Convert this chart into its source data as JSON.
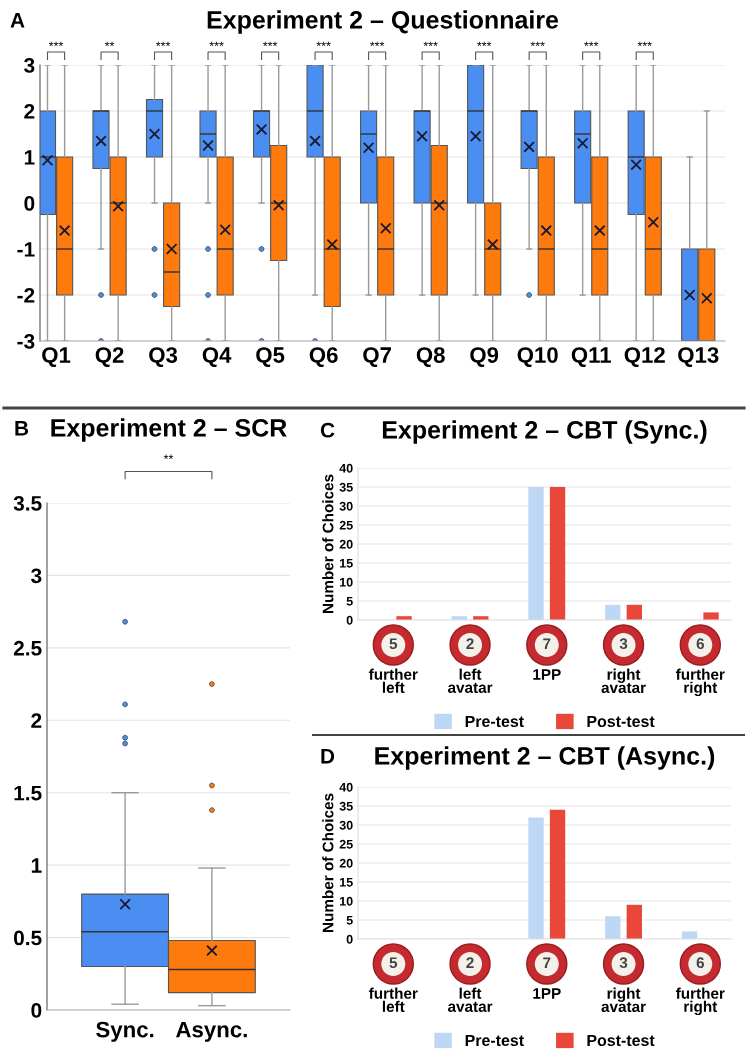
{
  "chart_data": [
    {
      "type": "box",
      "title": "Experiment 2 – Questionnaire",
      "annotations": [
        "A",
        "***",
        "**",
        "***",
        "***",
        "***",
        "***",
        "***",
        "***",
        "***",
        "***",
        "***",
        "***"
      ],
      "categories": [
        "Q1",
        "Q2",
        "Q3",
        "Q4",
        "Q5",
        "Q6",
        "Q7",
        "Q8",
        "Q9",
        "Q10",
        "Q11",
        "Q12",
        "Q13"
      ],
      "ylim": [
        -3,
        3
      ],
      "yticks": [
        -3,
        -2,
        -1,
        0,
        1,
        2,
        3
      ],
      "grid": "y",
      "series": [
        {
          "color": "#4a8ef2",
          "boxes": [
            {
              "low": -3,
              "q1": -0.25,
              "median": 1,
              "q3": 2,
              "high": 3,
              "mean": 0.93
            },
            {
              "low": -1,
              "q1": 0.75,
              "median": 2,
              "q3": 2,
              "high": 3,
              "mean": 1.35,
              "outliers": [
                -2,
                -3
              ]
            },
            {
              "low": 0,
              "q1": 1,
              "median": 2,
              "q3": 2.25,
              "high": 3,
              "mean": 1.5,
              "outliers": [
                -1,
                -2
              ]
            },
            {
              "low": 0,
              "q1": 1,
              "median": 1.5,
              "q3": 2,
              "high": 3,
              "mean": 1.25,
              "outliers": [
                -1,
                -2,
                -3
              ]
            },
            {
              "low": 0,
              "q1": 1,
              "median": 2,
              "q3": 2,
              "high": 3,
              "mean": 1.6,
              "outliers": [
                -1,
                -3
              ]
            },
            {
              "low": -2,
              "q1": 1,
              "median": 2,
              "q3": 3,
              "high": 3,
              "mean": 1.35,
              "outliers": [
                -3
              ]
            },
            {
              "low": -2,
              "q1": 0,
              "median": 1.5,
              "q3": 2,
              "high": 3,
              "mean": 1.2
            },
            {
              "low": -2,
              "q1": 0,
              "median": 2,
              "q3": 2,
              "high": 3,
              "mean": 1.45
            },
            {
              "low": -2,
              "q1": 0,
              "median": 2,
              "q3": 3,
              "high": 3,
              "mean": 1.45
            },
            {
              "low": -1,
              "q1": 0.75,
              "median": 2,
              "q3": 2,
              "high": 3,
              "mean": 1.22,
              "outliers": [
                -2
              ]
            },
            {
              "low": -2,
              "q1": 0,
              "median": 1.5,
              "q3": 2,
              "high": 3,
              "mean": 1.3
            },
            {
              "low": -3,
              "q1": -0.25,
              "median": 1,
              "q3": 2,
              "high": 3,
              "mean": 0.83
            },
            {
              "low": -3,
              "q1": -3,
              "median": -3,
              "q3": -1,
              "high": 1,
              "mean": -2
            }
          ]
        },
        {
          "color": "#ff7a0c",
          "boxes": [
            {
              "low": -3,
              "q1": -2,
              "median": -1,
              "q3": 1,
              "high": 3,
              "mean": -0.6
            },
            {
              "low": -3,
              "q1": -2,
              "median": 0,
              "q3": 1,
              "high": 3,
              "mean": -0.07
            },
            {
              "low": -3,
              "q1": -2.25,
              "median": -1.5,
              "q3": 0,
              "high": 3,
              "mean": -1
            },
            {
              "low": -3,
              "q1": -2,
              "median": -1,
              "q3": 1,
              "high": 3,
              "mean": -0.58
            },
            {
              "low": -3,
              "q1": -1.25,
              "median": 0,
              "q3": 1.25,
              "high": 3,
              "mean": -0.05
            },
            {
              "low": -3,
              "q1": -2.25,
              "median": -1,
              "q3": 1,
              "high": 3,
              "mean": -0.9
            },
            {
              "low": -3,
              "q1": -2,
              "median": -1,
              "q3": 1,
              "high": 3,
              "mean": -0.55
            },
            {
              "low": -3,
              "q1": -2,
              "median": 0,
              "q3": 1.25,
              "high": 3,
              "mean": -0.05
            },
            {
              "low": -3,
              "q1": -2,
              "median": -1,
              "q3": 0,
              "high": 3,
              "mean": -0.9
            },
            {
              "low": -3,
              "q1": -2,
              "median": -1,
              "q3": 1,
              "high": 3,
              "mean": -0.6
            },
            {
              "low": -3,
              "q1": -2,
              "median": -1,
              "q3": 1,
              "high": 3,
              "mean": -0.6
            },
            {
              "low": -3,
              "q1": -2,
              "median": -1,
              "q3": 1,
              "high": 3,
              "mean": -0.42
            },
            {
              "low": -3,
              "q1": -3,
              "median": -3,
              "q3": -1,
              "high": 2,
              "mean": -2.07
            }
          ]
        }
      ]
    },
    {
      "type": "box",
      "title": "Experiment 2 – SCR",
      "annotations": [
        "B",
        "**"
      ],
      "categories": [
        "Sync.",
        "Async."
      ],
      "ylim": [
        0,
        3.5
      ],
      "yticks": [
        0,
        0.5,
        1,
        1.5,
        2,
        2.5,
        3,
        3.5
      ],
      "grid": "y",
      "colors": [
        "#4a8ef2",
        "#ff7a0c"
      ],
      "boxes": [
        {
          "low": 0.04,
          "q1": 0.3,
          "median": 0.54,
          "q3": 0.8,
          "high": 1.5,
          "mean": 0.73,
          "outliers": [
            1.84,
            1.88,
            2.11,
            2.68
          ]
        },
        {
          "low": 0.03,
          "q1": 0.12,
          "median": 0.28,
          "q3": 0.48,
          "high": 0.98,
          "mean": 0.41,
          "outliers": [
            1.38,
            1.55,
            2.25
          ]
        }
      ]
    },
    {
      "type": "bar",
      "title": "Experiment 2 – CBT (Sync.)",
      "annotations": [
        "C",
        "5",
        "2",
        "7",
        "3",
        "6"
      ],
      "ylabel": "Number of Choices",
      "categories": [
        "further\nleft",
        "left\navatar",
        "1PP",
        "right\navatar",
        "further\nright"
      ],
      "ylim": [
        0,
        40
      ],
      "yticks": [
        0,
        5,
        10,
        15,
        20,
        25,
        30,
        35,
        40
      ],
      "grid": "y",
      "legend": "bottom",
      "series": [
        {
          "name": "Pre-test",
          "color": "#bdd7f5",
          "values": [
            0,
            1,
            35,
            4,
            0
          ]
        },
        {
          "name": "Post-test",
          "color": "#e8473a",
          "values": [
            1,
            1,
            35,
            4,
            2
          ]
        }
      ]
    },
    {
      "type": "bar",
      "title": "Experiment 2 – CBT (Async.)",
      "annotations": [
        "D",
        "5",
        "2",
        "7",
        "3",
        "6"
      ],
      "ylabel": "Number of Choices",
      "categories": [
        "further\nleft",
        "left\navatar",
        "1PP",
        "right\navatar",
        "further\nright"
      ],
      "ylim": [
        0,
        40
      ],
      "yticks": [
        0,
        5,
        10,
        15,
        20,
        25,
        30,
        35,
        40
      ],
      "grid": "y",
      "legend": "bottom",
      "series": [
        {
          "name": "Pre-test",
          "color": "#bdd7f5",
          "values": [
            0,
            0,
            32,
            6,
            2
          ]
        },
        {
          "name": "Post-test",
          "color": "#e8473a",
          "values": [
            0,
            0,
            34,
            9,
            0
          ]
        }
      ]
    }
  ]
}
